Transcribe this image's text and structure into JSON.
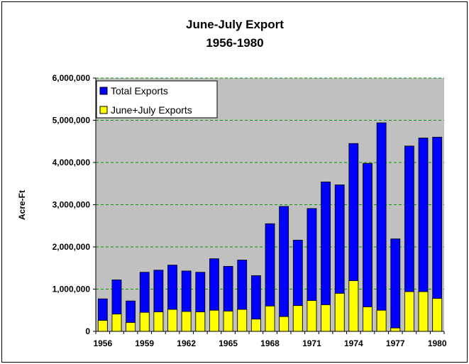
{
  "chart_data": {
    "type": "bar",
    "stacking": "overlap",
    "title": "June-July Export",
    "subtitle": "1956-1980",
    "xlabel": "",
    "ylabel": "Acre-Ft",
    "ylim": [
      0,
      6000000
    ],
    "yticks": [
      "0",
      "1,000,000",
      "2,000,000",
      "3,000,000",
      "4,000,000",
      "5,000,000",
      "6,000,000"
    ],
    "xtick_labels": [
      "1956",
      "1959",
      "1962",
      "1965",
      "1968",
      "1971",
      "1974",
      "1977",
      "1980"
    ],
    "grid": "horizontal dashed",
    "legend_position": "top-left",
    "categories": [
      "1956",
      "1957",
      "1958",
      "1959",
      "1960",
      "1961",
      "1962",
      "1963",
      "1964",
      "1965",
      "1966",
      "1967",
      "1968",
      "1969",
      "1970",
      "1971",
      "1972",
      "1973",
      "1974",
      "1975",
      "1976",
      "1977",
      "1978",
      "1979",
      "1980"
    ],
    "series": [
      {
        "name": "Total Exports",
        "color": "#0000ff",
        "values": [
          770000,
          1220000,
          720000,
          1400000,
          1450000,
          1570000,
          1430000,
          1400000,
          1720000,
          1540000,
          1690000,
          1320000,
          2550000,
          2960000,
          2160000,
          2910000,
          3540000,
          3470000,
          4450000,
          3980000,
          4940000,
          2190000,
          4390000,
          4580000,
          4600000
        ]
      },
      {
        "name": "June+July Exports",
        "color": "#ffff00",
        "values": [
          260000,
          410000,
          210000,
          450000,
          460000,
          520000,
          470000,
          460000,
          500000,
          480000,
          520000,
          290000,
          600000,
          350000,
          610000,
          730000,
          630000,
          900000,
          1200000,
          580000,
          500000,
          80000,
          940000,
          940000,
          780000
        ]
      }
    ],
    "plot_background": "#c0c0c0"
  }
}
